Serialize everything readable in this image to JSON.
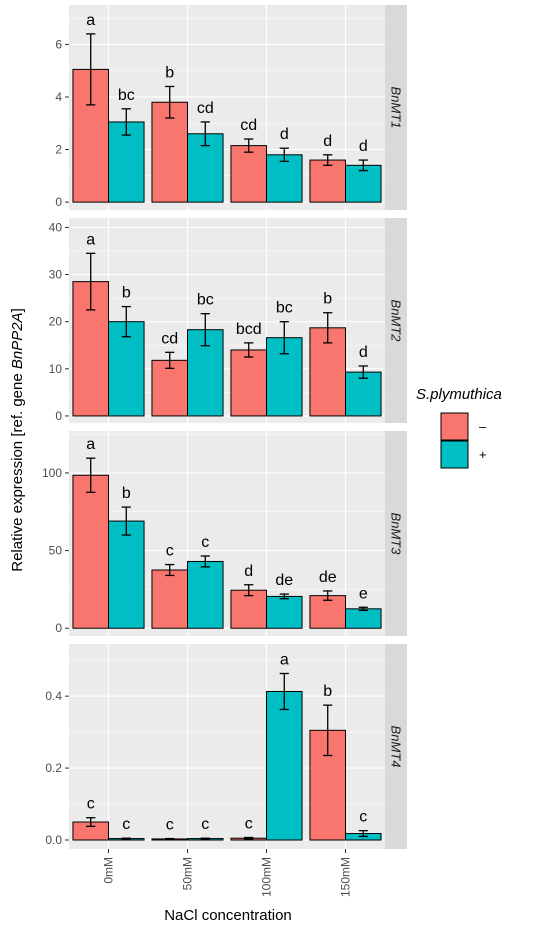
{
  "chart_data": {
    "type": "bar",
    "xlabel": "NaCl concentration",
    "ylabel_prefix": "Relative expression [ref. gene ",
    "ylabel_gene": "BnPP2A",
    "ylabel_suffix": "]",
    "categories": [
      "0mM",
      "50mM",
      "100mM",
      "150mM"
    ],
    "legend": {
      "title": "S.plymuthica",
      "position": "right",
      "entries": [
        {
          "label": "–",
          "color": "#f8766d"
        },
        {
          "label": "+",
          "color": "#00bfc4"
        }
      ]
    },
    "panels": [
      {
        "strip": "BnMT1",
        "ylim": [
          -0.3,
          7.5
        ],
        "yticks": [
          0,
          2,
          4,
          6
        ],
        "ytick_labels": [
          "0",
          "2",
          "4",
          "6"
        ],
        "series": [
          {
            "name": "–",
            "values": [
              5.05,
              3.8,
              2.15,
              1.6
            ],
            "errors": [
              1.35,
              0.6,
              0.25,
              0.2
            ],
            "letters": [
              "a",
              "b",
              "cd",
              "d"
            ]
          },
          {
            "name": "+",
            "values": [
              3.05,
              2.6,
              1.8,
              1.4
            ],
            "errors": [
              0.5,
              0.45,
              0.25,
              0.2
            ],
            "letters": [
              "bc",
              "cd",
              "d",
              "d"
            ]
          }
        ]
      },
      {
        "strip": "BnMT2",
        "ylim": [
          -1.5,
          42
        ],
        "yticks": [
          0,
          10,
          20,
          30,
          40
        ],
        "ytick_labels": [
          "0",
          "10",
          "20",
          "30",
          "40"
        ],
        "series": [
          {
            "name": "–",
            "values": [
              28.5,
              11.8,
              14.0,
              18.7
            ],
            "errors": [
              6.0,
              1.7,
              1.5,
              3.2
            ],
            "letters": [
              "a",
              "cd",
              "bcd",
              "b"
            ]
          },
          {
            "name": "+",
            "values": [
              20.0,
              18.3,
              16.6,
              9.3
            ],
            "errors": [
              3.2,
              3.4,
              3.4,
              1.3
            ],
            "letters": [
              "b",
              "bc",
              "bc",
              "d"
            ]
          }
        ]
      },
      {
        "strip": "BnMT3",
        "ylim": [
          -5,
          127
        ],
        "yticks": [
          0,
          50,
          100
        ],
        "ytick_labels": [
          "0",
          "50",
          "100"
        ],
        "series": [
          {
            "name": "–",
            "values": [
              98.5,
              37.5,
              24.5,
              21.0
            ],
            "errors": [
              11.0,
              3.5,
              3.5,
              3.0
            ],
            "letters": [
              "a",
              "c",
              "d",
              "de"
            ]
          },
          {
            "name": "+",
            "values": [
              69.0,
              43.0,
              20.5,
              12.5
            ],
            "errors": [
              9.0,
              3.5,
              1.5,
              1.0
            ],
            "letters": [
              "b",
              "c",
              "de",
              "e"
            ]
          }
        ]
      },
      {
        "strip": "BnMT4",
        "ylim": [
          -0.025,
          0.545
        ],
        "yticks": [
          0.0,
          0.2,
          0.4
        ],
        "ytick_labels": [
          "0.0",
          "0.2",
          "0.4"
        ],
        "series": [
          {
            "name": "–",
            "values": [
              0.05,
              0.003,
              0.005,
              0.305
            ],
            "errors": [
              0.012,
              0.001,
              0.002,
              0.07
            ],
            "letters": [
              "c",
              "c",
              "c",
              "b"
            ]
          },
          {
            "name": "+",
            "values": [
              0.004,
              0.004,
              0.413,
              0.018
            ],
            "errors": [
              0.001,
              0.001,
              0.05,
              0.008
            ],
            "letters": [
              "c",
              "c",
              "a",
              "c"
            ]
          }
        ]
      }
    ]
  }
}
